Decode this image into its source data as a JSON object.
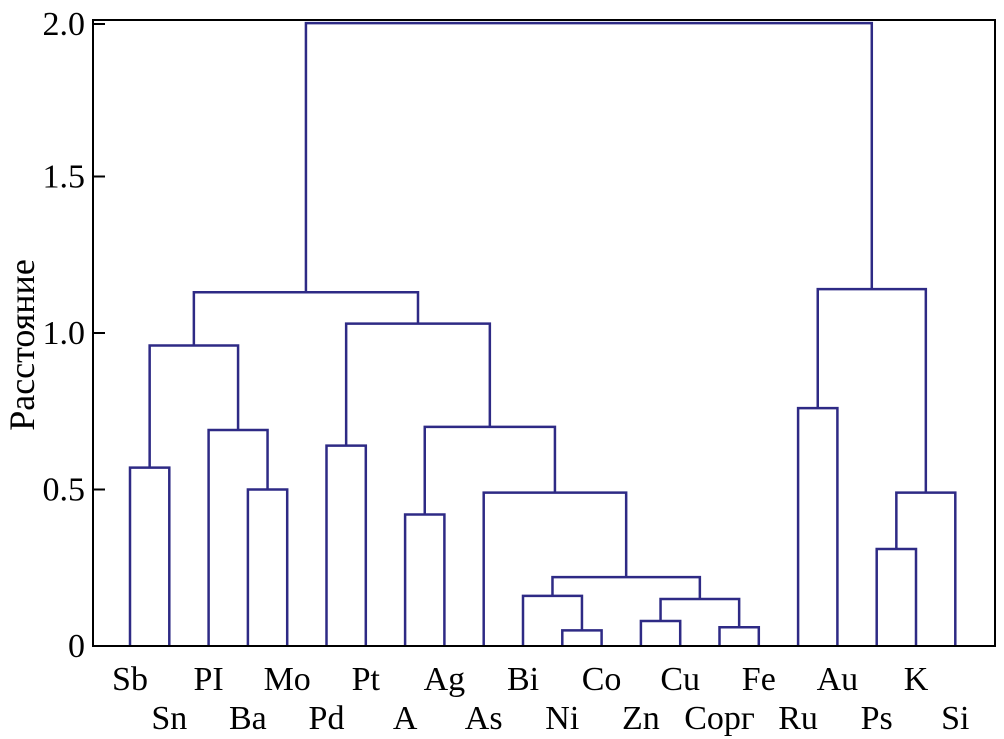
{
  "chart_data": {
    "type": "dendrogram",
    "ylabel": "Расстояние",
    "ylim": [
      0,
      2.0
    ],
    "yticks": [
      {
        "value": 0,
        "label": "0"
      },
      {
        "value": 0.5,
        "label": "0.5"
      },
      {
        "value": 1.0,
        "label": "1.0"
      },
      {
        "value": 1.5,
        "label": "1.5"
      },
      {
        "value": 2.0,
        "label": "2.0"
      }
    ],
    "leaves": [
      {
        "label": "Sb",
        "row": 0
      },
      {
        "label": "Sn",
        "row": 1
      },
      {
        "label": "PI",
        "row": 0
      },
      {
        "label": "Ba",
        "row": 1
      },
      {
        "label": "Mo",
        "row": 0
      },
      {
        "label": "Pd",
        "row": 1
      },
      {
        "label": "Pt",
        "row": 0
      },
      {
        "label": "A",
        "row": 1
      },
      {
        "label": "Ag",
        "row": 0
      },
      {
        "label": "As",
        "row": 1
      },
      {
        "label": "Bi",
        "row": 0
      },
      {
        "label": "Ni",
        "row": 1
      },
      {
        "label": "Co",
        "row": 0
      },
      {
        "label": "Zn",
        "row": 1
      },
      {
        "label": "Cu",
        "row": 0
      },
      {
        "label": "Cорг",
        "row": 1
      },
      {
        "label": "Fe",
        "row": 0
      },
      {
        "label": "Ru",
        "row": 1
      },
      {
        "label": "Au",
        "row": 0
      },
      {
        "label": "Ps",
        "row": 1
      },
      {
        "label": "K",
        "row": 0
      },
      {
        "label": "Si",
        "row": 1
      }
    ],
    "merges": [
      {
        "id": "m1",
        "left": 0,
        "right": 1,
        "height": 0.57
      },
      {
        "id": "m2",
        "left": 3,
        "right": 4,
        "height": 0.5
      },
      {
        "id": "m3",
        "left": 2,
        "right": "m2",
        "height": 0.69
      },
      {
        "id": "m4",
        "left": "m1",
        "right": "m3",
        "height": 0.96
      },
      {
        "id": "m5",
        "left": 5,
        "right": 6,
        "height": 0.64
      },
      {
        "id": "m6",
        "left": 7,
        "right": 8,
        "height": 0.42
      },
      {
        "id": "m7",
        "left": 11,
        "right": 12,
        "height": 0.05
      },
      {
        "id": "m8",
        "left": 10,
        "right": "m7",
        "height": 0.16
      },
      {
        "id": "m9",
        "left": 13,
        "right": 14,
        "height": 0.08
      },
      {
        "id": "m10",
        "left": 15,
        "right": 16,
        "height": 0.06
      },
      {
        "id": "m11",
        "left": "m9",
        "right": "m10",
        "height": 0.15
      },
      {
        "id": "m12",
        "left": "m8",
        "right": "m11",
        "height": 0.22
      },
      {
        "id": "m13",
        "left": 9,
        "right": "m12",
        "height": 0.49
      },
      {
        "id": "m14",
        "left": "m6",
        "right": "m13",
        "height": 0.7
      },
      {
        "id": "m15",
        "left": "m5",
        "right": "m14",
        "height": 1.03
      },
      {
        "id": "m16",
        "left": "m4",
        "right": "m15",
        "height": 1.13
      },
      {
        "id": "m17",
        "left": 17,
        "right": 18,
        "height": 0.76
      },
      {
        "id": "m18",
        "left": 19,
        "right": 20,
        "height": 0.31
      },
      {
        "id": "m19",
        "left": "m18",
        "right": 21,
        "height": 0.49
      },
      {
        "id": "m20",
        "left": "m17",
        "right": "m19",
        "height": 1.14
      },
      {
        "id": "m21",
        "left": "m16",
        "right": "m20",
        "height": 1.99
      }
    ],
    "grid": false,
    "colors": {
      "links": "#2e2a85",
      "axes": "#000000"
    }
  }
}
